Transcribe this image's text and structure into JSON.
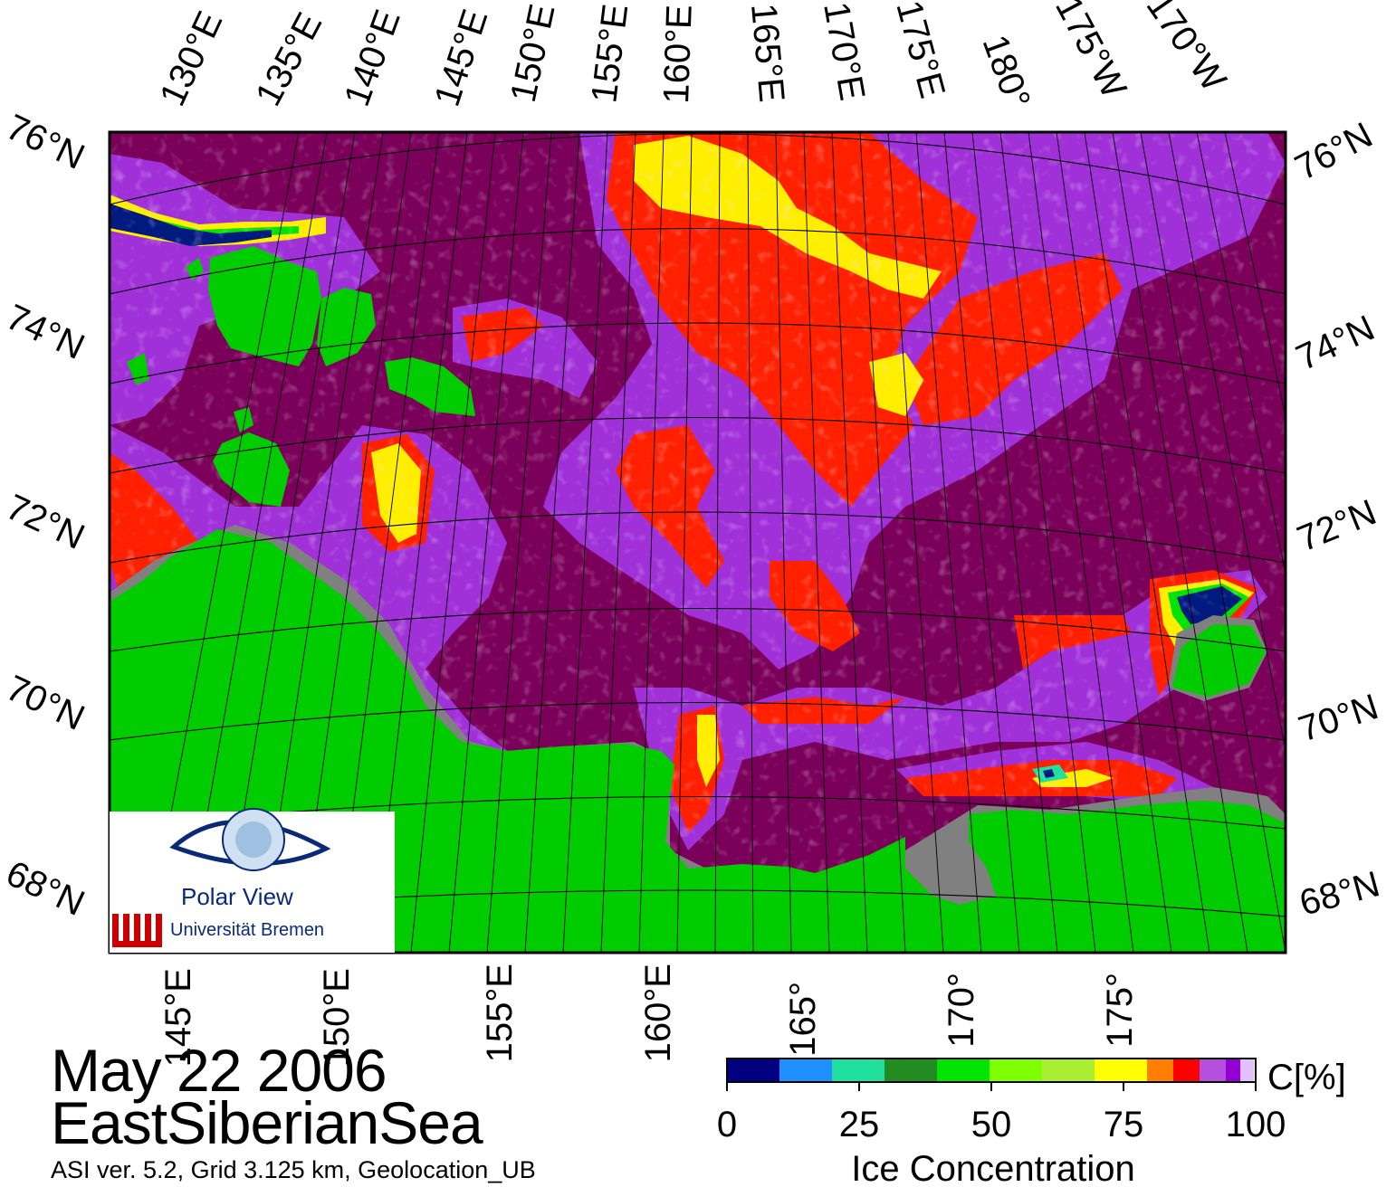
{
  "date": "May 22 2006",
  "region": "EastSiberianSea",
  "footer_note": "ASI ver. 5.2,  Grid 3.125 km, Geolocation_UB",
  "logo": {
    "name": "Polar View",
    "institution": "Universität Bremen"
  },
  "top_lon_labels": [
    "130°E",
    "135°E",
    "140°E",
    "145°E",
    "150°E",
    "155°E",
    "160°E",
    "165°E",
    "170°E",
    "175°E",
    "180°",
    "175°W",
    "170°W"
  ],
  "bottom_lon_labels": [
    "145°E",
    "150°E",
    "155°E",
    "160°E",
    "165°",
    "170°",
    "175°"
  ],
  "left_lat_labels": [
    "76°N",
    "74°N",
    "72°N",
    "70°N",
    "68°N"
  ],
  "right_lat_labels": [
    "76°N",
    "74°N",
    "72°N",
    "70°N",
    "68°N"
  ],
  "colorbar": {
    "unit": "C[%]",
    "title": "Ice Concentration",
    "ticks": [
      "0",
      "25",
      "50",
      "75",
      "100"
    ],
    "colors": [
      "#000080",
      "#1e90ff",
      "#20e0a0",
      "#228b22",
      "#00e400",
      "#80ff00",
      "#aaee33",
      "#ffff00",
      "#ff8000",
      "#ff0000",
      "#b44fe0",
      "#9400d3",
      "#e0c0ff"
    ]
  },
  "map_colors": {
    "land": "#00cc00",
    "open_water": "#7a0059",
    "coast": "#808080",
    "ice_low": "#a030d8",
    "ice_mid": "#ff2000",
    "ice_high": "#ffee00",
    "ice_full": "#001a80"
  }
}
